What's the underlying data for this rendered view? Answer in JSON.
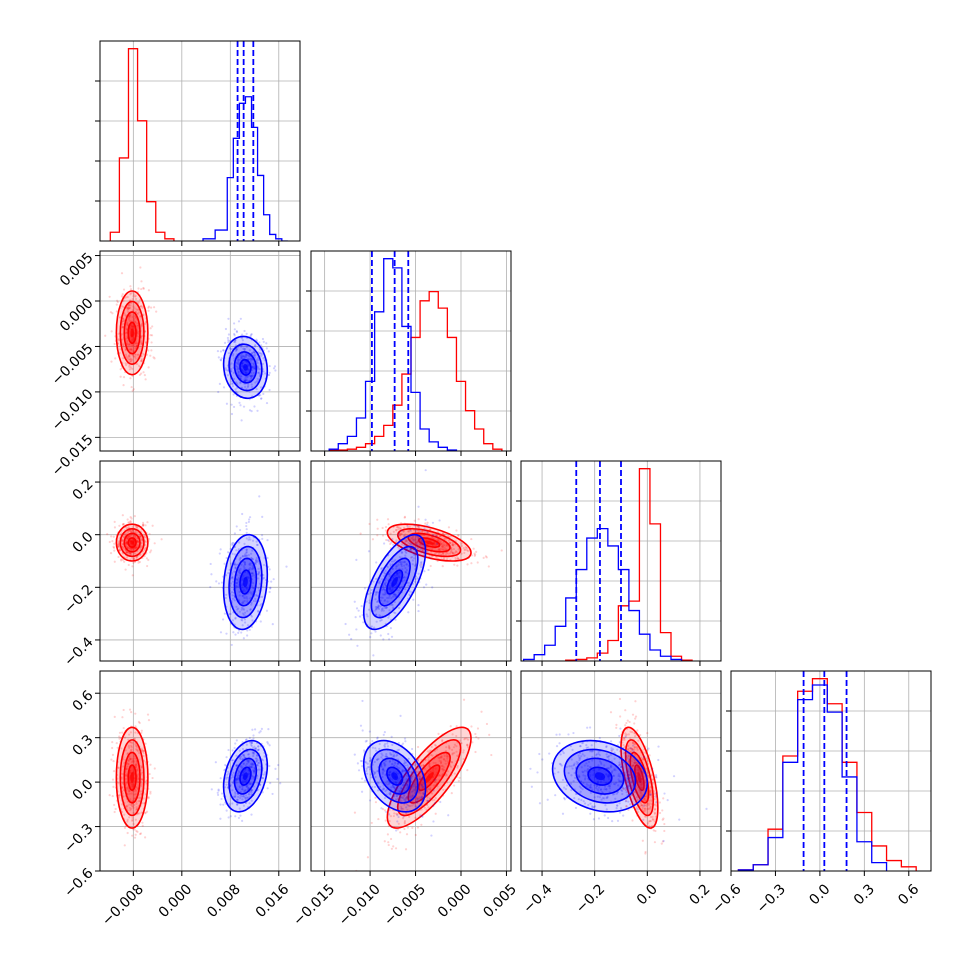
{
  "chart_data": {
    "type": "corner",
    "params": [
      {
        "range": [
          -0.0135,
          0.0195
        ],
        "ticks": [
          -0.008,
          0.0,
          0.008,
          0.016
        ],
        "tick_labels": [
          "−0.008",
          "0.000",
          "0.008",
          "0.016"
        ]
      },
      {
        "range": [
          -0.0165,
          0.0055
        ],
        "ticks": [
          -0.015,
          -0.01,
          -0.005,
          0.0,
          0.005
        ],
        "tick_labels": [
          "−0.015",
          "−0.010",
          "−0.005",
          "0.000",
          "0.005"
        ]
      },
      {
        "range": [
          -0.48,
          0.28
        ],
        "ticks": [
          -0.4,
          -0.2,
          0.0,
          0.2
        ],
        "tick_labels": [
          "−0.4",
          "−0.2",
          "0.0",
          "0.2"
        ]
      },
      {
        "range": [
          -0.6,
          0.75
        ],
        "ticks": [
          -0.6,
          -0.3,
          0.0,
          0.3,
          0.6
        ],
        "tick_labels": [
          "−0.6",
          "−0.3",
          "0.0",
          "0.3",
          "0.6"
        ]
      }
    ],
    "series": [
      {
        "color": "#ff0000",
        "means": [
          -0.0082,
          -0.0035,
          -0.03,
          0.03
        ],
        "sds": [
          0.0013,
          0.0023,
          0.035,
          0.17
        ],
        "correlations": {
          "1-0": 0.0,
          "2-0": 0.0,
          "2-1": -0.55,
          "3-0": 0.0,
          "3-1": 0.78,
          "3-2": -0.6
        }
      },
      {
        "color": "#0000ff",
        "means": [
          0.0105,
          -0.0073,
          -0.18,
          0.04
        ],
        "sds": [
          0.0018,
          0.0017,
          0.09,
          0.12
        ],
        "correlations": {
          "1-0": -0.1,
          "2-0": 0.15,
          "2-1": 0.65,
          "3-0": 0.3,
          "3-1": -0.35,
          "3-2": -0.2
        }
      }
    ],
    "hist_counts": [
      [
        {
          "color": "#ff0000",
          "edges": [
            -0.0118,
            -0.0103,
            -0.0088,
            -0.0073,
            -0.0058,
            -0.0043,
            -0.0028,
            -0.0013
          ],
          "counts": [
            0.04,
            0.38,
            0.88,
            0.55,
            0.18,
            0.04,
            0.01
          ]
        },
        {
          "color": "#0000ff",
          "edges": [
            0.0035,
            0.0055,
            0.0075,
            0.0085,
            0.0095,
            0.0105,
            0.0115,
            0.0125,
            0.0135,
            0.0145,
            0.0155,
            0.0165,
            0.0175
          ],
          "counts": [
            0.01,
            0.05,
            0.29,
            0.47,
            0.63,
            0.66,
            0.52,
            0.3,
            0.12,
            0.03,
            0.01,
            0.0
          ]
        }
      ],
      [
        {
          "color": "#ff0000",
          "edges": [
            -0.0145,
            -0.0125,
            -0.0115,
            -0.0105,
            -0.0095,
            -0.0085,
            -0.0075,
            -0.0065,
            -0.0055,
            -0.0045,
            -0.0035,
            -0.0025,
            -0.0015,
            -0.0005,
            0.0005,
            0.0015,
            0.0025,
            0.0035,
            0.0045
          ],
          "counts": [
            0.005,
            0.01,
            0.02,
            0.04,
            0.08,
            0.14,
            0.25,
            0.42,
            0.62,
            0.82,
            0.87,
            0.78,
            0.62,
            0.38,
            0.22,
            0.12,
            0.04,
            0.01
          ]
        },
        {
          "color": "#0000ff",
          "edges": [
            -0.0145,
            -0.0135,
            -0.0125,
            -0.0115,
            -0.0105,
            -0.0095,
            -0.0085,
            -0.0075,
            -0.0065,
            -0.0055,
            -0.0045,
            -0.0035,
            -0.0025,
            -0.0015,
            -0.0005
          ],
          "counts": [
            0.01,
            0.04,
            0.08,
            0.18,
            0.38,
            0.76,
            1.05,
            1.0,
            0.68,
            0.32,
            0.12,
            0.05,
            0.02,
            0.005
          ]
        }
      ],
      [
        {
          "color": "#ff0000",
          "edges": [
            -0.31,
            -0.27,
            -0.23,
            -0.19,
            -0.15,
            -0.11,
            -0.07,
            -0.03,
            0.01,
            0.05,
            0.09,
            0.13,
            0.17
          ],
          "counts": [
            0.005,
            0.01,
            0.02,
            0.05,
            0.13,
            0.35,
            0.38,
            1.22,
            0.87,
            0.18,
            0.03,
            0.005
          ]
        },
        {
          "color": "#0000ff",
          "edges": [
            -0.47,
            -0.43,
            -0.39,
            -0.35,
            -0.31,
            -0.27,
            -0.23,
            -0.19,
            -0.15,
            -0.11,
            -0.07,
            -0.03,
            0.01,
            0.05,
            0.09,
            0.13
          ],
          "counts": [
            0.01,
            0.04,
            0.1,
            0.22,
            0.4,
            0.58,
            0.78,
            0.84,
            0.73,
            0.58,
            0.32,
            0.17,
            0.07,
            0.03,
            0.01
          ]
        }
      ],
      [
        {
          "color": "#ff0000",
          "edges": [
            -0.55,
            -0.45,
            -0.35,
            -0.25,
            -0.15,
            -0.05,
            0.05,
            0.15,
            0.25,
            0.35,
            0.45,
            0.55,
            0.65
          ],
          "counts": [
            0.005,
            0.03,
            0.2,
            0.55,
            0.86,
            0.92,
            0.8,
            0.52,
            0.28,
            0.12,
            0.05,
            0.02
          ]
        },
        {
          "color": "#0000ff",
          "edges": [
            -0.55,
            -0.45,
            -0.35,
            -0.25,
            -0.15,
            -0.05,
            0.05,
            0.15,
            0.25,
            0.35,
            0.45
          ],
          "counts": [
            0.005,
            0.03,
            0.16,
            0.52,
            0.82,
            0.89,
            0.76,
            0.45,
            0.14,
            0.04
          ]
        }
      ]
    ],
    "quantile_lines": [
      {
        "color": "#0000ff",
        "values": [
          0.0092,
          0.0102,
          0.0118
        ]
      },
      {
        "color": "#0000ff",
        "values": [
          -0.0098,
          -0.0073,
          -0.0058
        ]
      },
      {
        "color": "#0000ff",
        "values": [
          -0.27,
          -0.18,
          -0.1
        ]
      },
      {
        "color": "#0000ff",
        "values": [
          -0.11,
          0.03,
          0.18
        ]
      }
    ],
    "grid": true,
    "legend": "none"
  }
}
